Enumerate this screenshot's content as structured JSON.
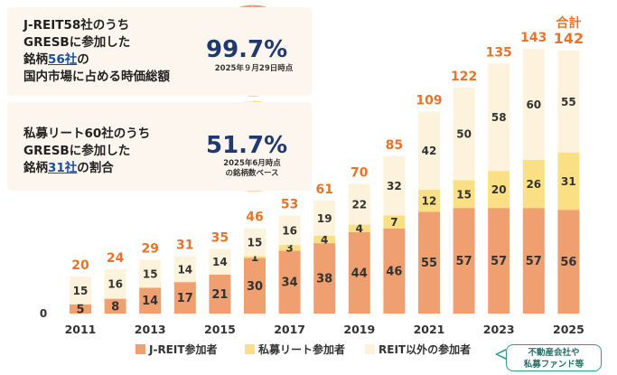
{
  "cards": {
    "top": {
      "line1": "J-REIT58社のうち",
      "line2": "GRESBに参加した",
      "line3_pre": "銘柄",
      "line3_hl": "56社",
      "line3_post": "の",
      "line4": "国内市場に占める時価総額",
      "pct": "99.7%",
      "pct_value": 99.7,
      "note": "2025年９月29日時点"
    },
    "bottom": {
      "line1": "私募リート60社のうち",
      "line2": "GRESBに参加した",
      "line3_pre": "銘柄",
      "line3_hl": "31社",
      "line3_post": "の割合",
      "pct": "51.7%",
      "pct_value": 51.7,
      "note1": "2025年6月時点",
      "note2": "の銘柄数ベース"
    }
  },
  "chart_data": {
    "type": "bar",
    "stacked": true,
    "categories": [
      "2011",
      "2012",
      "2013",
      "2014",
      "2015",
      "2016",
      "2017",
      "2018",
      "2019",
      "2020",
      "2021",
      "2022",
      "2023",
      "2024",
      "2025"
    ],
    "series": [
      {
        "name": "J-REIT参加者",
        "values": [
          5,
          8,
          14,
          17,
          21,
          30,
          34,
          38,
          44,
          46,
          55,
          57,
          57,
          57,
          56
        ],
        "color": "#f0a070"
      },
      {
        "name": "私募リート参加者",
        "values": [
          0,
          0,
          0,
          0,
          0,
          1,
          3,
          4,
          4,
          7,
          12,
          15,
          20,
          26,
          31
        ],
        "color": "#fbdf84"
      },
      {
        "name": "REIT以外の参加者",
        "values": [
          15,
          16,
          15,
          14,
          14,
          15,
          16,
          19,
          22,
          32,
          42,
          50,
          58,
          60,
          55
        ],
        "color": "#fdf3dc"
      }
    ],
    "totals": [
      20,
      24,
      29,
      31,
      35,
      46,
      53,
      61,
      70,
      85,
      109,
      122,
      135,
      143,
      142
    ],
    "x_tick_labels": [
      "2011",
      "2013",
      "2015",
      "2017",
      "2019",
      "2021",
      "2023",
      "2025"
    ],
    "zero_label": "0",
    "total_header": "合計",
    "ylim": [
      0,
      150
    ],
    "legend": {
      "items": [
        "J-REIT参加者",
        "私募リート参加者",
        "REIT以外の参加者"
      ],
      "position": "bottom"
    },
    "colors": {
      "total_label": "#e8742a",
      "bar_text": "#333333"
    }
  },
  "annotation": {
    "line1": "不動産会社や",
    "line2": "私募ファンド等"
  }
}
